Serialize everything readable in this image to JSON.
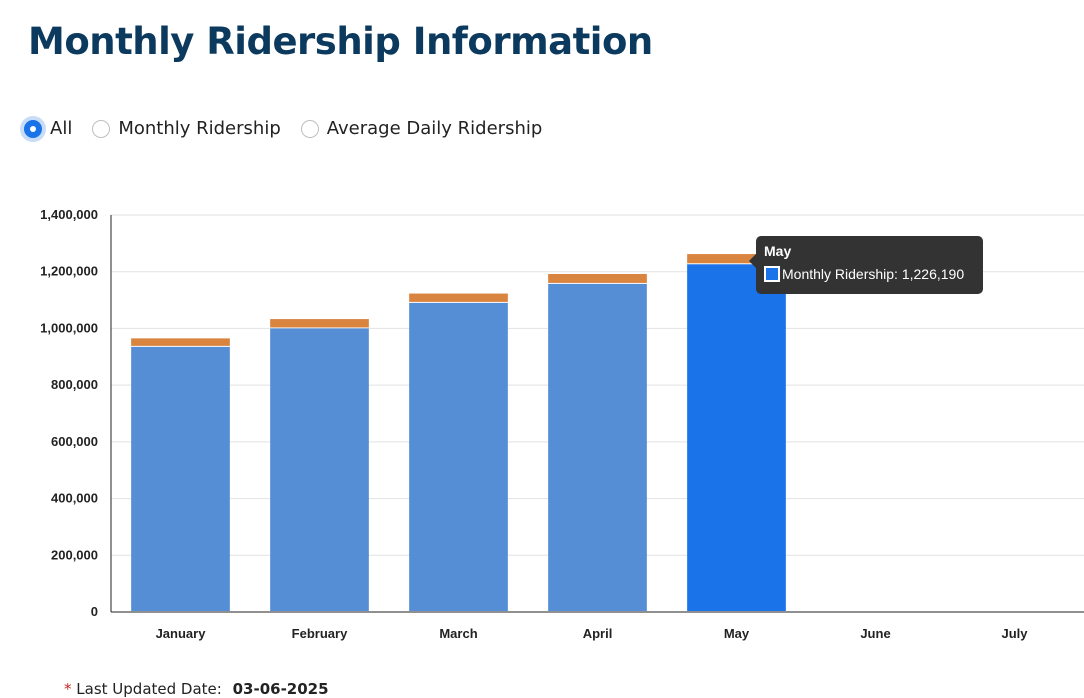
{
  "page": {
    "title": "Monthly Ridership Information"
  },
  "filters": {
    "options": [
      {
        "label": "All",
        "selected": true
      },
      {
        "label": "Monthly Ridership",
        "selected": false
      },
      {
        "label": "Average Daily Ridership",
        "selected": false
      }
    ]
  },
  "colors": {
    "monthly_bar": "#558ed5",
    "average_daily_bar": "#d9843f",
    "highlight_bar": "#1a73e8",
    "title": "#0b3a5e"
  },
  "chart_data": {
    "type": "bar",
    "stacked": true,
    "categories": [
      "January",
      "February",
      "March",
      "April",
      "May",
      "June",
      "July"
    ],
    "series": [
      {
        "name": "Monthly Ridership",
        "values": [
          935000,
          1000000,
          1090000,
          1157000,
          1226190,
          null,
          null
        ]
      },
      {
        "name": "",
        "values": [
          30000,
          33000,
          33000,
          35000,
          36000,
          null,
          null
        ]
      }
    ],
    "ylim": [
      0,
      1400000
    ],
    "y_ticks": [
      "0",
      "200,000",
      "400,000",
      "600,000",
      "800,000",
      "1,000,000",
      "1,200,000",
      "1,400,000"
    ],
    "grid": true,
    "highlighted_category": "May"
  },
  "tooltip": {
    "title": "May",
    "text": "Monthly Ridership: 1,226,190"
  },
  "footer": {
    "asterisk": "*",
    "label": "Last Updated Date:",
    "date": "03-06-2025"
  }
}
